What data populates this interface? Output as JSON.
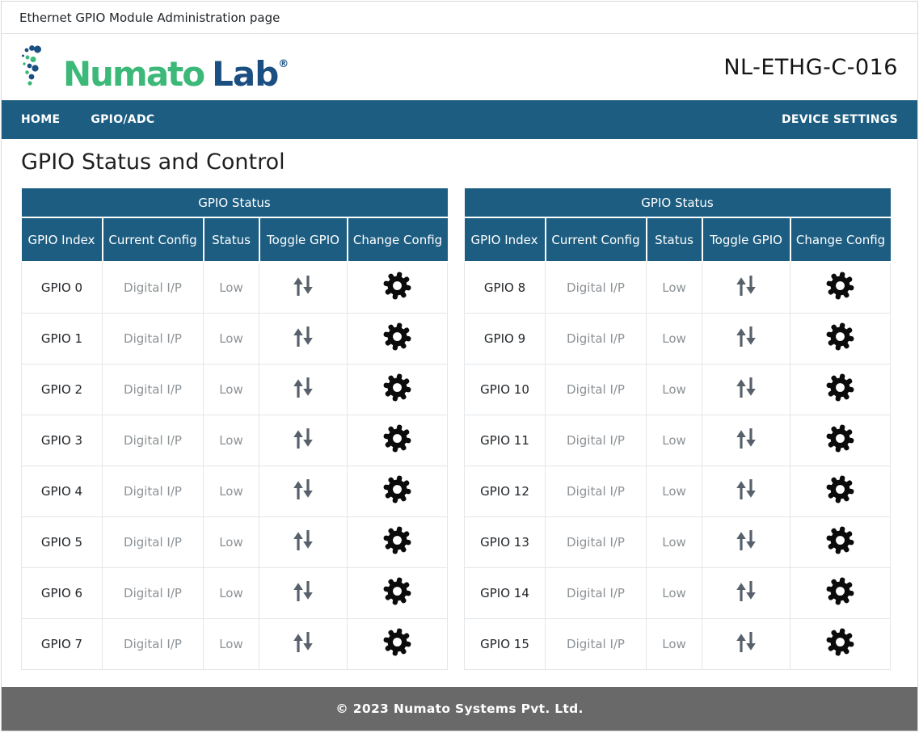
{
  "page": {
    "title": "Ethernet GPIO Module Administration page"
  },
  "header": {
    "brand": {
      "name_primary": "Numato",
      "name_secondary": "Lab",
      "registered_mark": "®"
    },
    "model": "NL-ETHG-C-016"
  },
  "nav": {
    "items": [
      {
        "label": "HOME"
      },
      {
        "label": "GPIO/ADC"
      }
    ],
    "right_item": {
      "label": "DEVICE SETTINGS"
    }
  },
  "main": {
    "heading": "GPIO Status and Control"
  },
  "tables": [
    {
      "title": "GPIO Status",
      "columns": [
        "GPIO Index",
        "Current Config",
        "Status",
        "Toggle GPIO",
        "Change Config"
      ],
      "rows": [
        {
          "index": "GPIO 0",
          "config": "Digital I/P",
          "status": "Low"
        },
        {
          "index": "GPIO 1",
          "config": "Digital I/P",
          "status": "Low"
        },
        {
          "index": "GPIO 2",
          "config": "Digital I/P",
          "status": "Low"
        },
        {
          "index": "GPIO 3",
          "config": "Digital I/P",
          "status": "Low"
        },
        {
          "index": "GPIO 4",
          "config": "Digital I/P",
          "status": "Low"
        },
        {
          "index": "GPIO 5",
          "config": "Digital I/P",
          "status": "Low"
        },
        {
          "index": "GPIO 6",
          "config": "Digital I/P",
          "status": "Low"
        },
        {
          "index": "GPIO 7",
          "config": "Digital I/P",
          "status": "Low"
        }
      ]
    },
    {
      "title": "GPIO Status",
      "columns": [
        "GPIO Index",
        "Current Config",
        "Status",
        "Toggle GPIO",
        "Change Config"
      ],
      "rows": [
        {
          "index": "GPIO 8",
          "config": "Digital I/P",
          "status": "Low"
        },
        {
          "index": "GPIO 9",
          "config": "Digital I/P",
          "status": "Low"
        },
        {
          "index": "GPIO 10",
          "config": "Digital I/P",
          "status": "Low"
        },
        {
          "index": "GPIO 11",
          "config": "Digital I/P",
          "status": "Low"
        },
        {
          "index": "GPIO 12",
          "config": "Digital I/P",
          "status": "Low"
        },
        {
          "index": "GPIO 13",
          "config": "Digital I/P",
          "status": "Low"
        },
        {
          "index": "GPIO 14",
          "config": "Digital I/P",
          "status": "Low"
        },
        {
          "index": "GPIO 15",
          "config": "Digital I/P",
          "status": "Low"
        }
      ]
    }
  ],
  "icons": {
    "logo_dots": "logo-dots-icon",
    "toggle_gpio": "up-down-arrows-icon",
    "change_config": "gear-icon"
  },
  "footer": {
    "copyright": "© 2023 Numato Systems Pvt. Ltd."
  },
  "colors": {
    "accent_teal": "#1C5D81",
    "footer_gray": "#696969",
    "logo_green": "#3CB878",
    "logo_blue": "#1B4F82",
    "arrow_gray": "#58616B",
    "gear_black": "#0B0B0B",
    "cell_border": "#E3E6E9",
    "muted_text": "#8D9296"
  }
}
